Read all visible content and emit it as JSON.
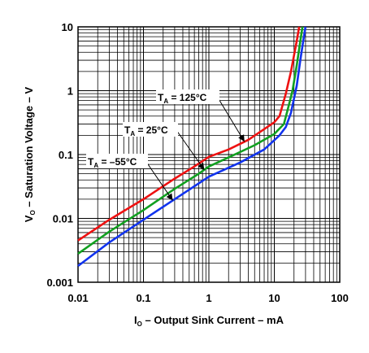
{
  "chart_data": {
    "type": "line",
    "title": "",
    "x_axis": {
      "label_main": "I",
      "label_sub": "O",
      "label_rest": " – Output Sink Current – mA",
      "scale": "log",
      "xlim": [
        0.01,
        100
      ],
      "ticks": [
        "0.01",
        "0.1",
        "1",
        "10",
        "100"
      ]
    },
    "y_axis": {
      "label_main": "V",
      "label_sub": "O",
      "label_rest": " – Saturation Voltage – V",
      "scale": "log",
      "ylim": [
        0.001,
        10
      ],
      "ticks": [
        "0.001",
        "0.01",
        "0.1",
        "1",
        "10"
      ]
    },
    "grid": true,
    "series": [
      {
        "name": "T_A = 125°C",
        "label_main": "T",
        "label_sub": "A",
        "label_rest": " = 125°C",
        "color": "#ee1111",
        "points": [
          [
            0.01,
            0.0045
          ],
          [
            0.03,
            0.0095
          ],
          [
            0.1,
            0.02
          ],
          [
            0.3,
            0.042
          ],
          [
            0.6,
            0.065
          ],
          [
            1,
            0.092
          ],
          [
            2,
            0.12
          ],
          [
            4,
            0.17
          ],
          [
            7,
            0.25
          ],
          [
            10,
            0.32
          ],
          [
            12,
            0.4
          ],
          [
            15,
            0.9
          ],
          [
            18,
            2.0
          ],
          [
            22,
            6.0
          ],
          [
            24,
            10
          ]
        ]
      },
      {
        "name": "T_A = 25°C",
        "label_main": "T",
        "label_sub": "A",
        "label_rest": " = 25°C",
        "color": "#11a020",
        "points": [
          [
            0.01,
            0.0028
          ],
          [
            0.03,
            0.0062
          ],
          [
            0.1,
            0.0135
          ],
          [
            0.3,
            0.029
          ],
          [
            0.7,
            0.05
          ],
          [
            1,
            0.065
          ],
          [
            2,
            0.09
          ],
          [
            5,
            0.14
          ],
          [
            10,
            0.21
          ],
          [
            14,
            0.3
          ],
          [
            16,
            0.5
          ],
          [
            19,
            1.0
          ],
          [
            22,
            2.5
          ],
          [
            25,
            6.0
          ],
          [
            27,
            10
          ]
        ]
      },
      {
        "name": "T_A = –55°C",
        "label_main": "T",
        "label_sub": "A",
        "label_rest": " = –55°C",
        "color": "#1133ee",
        "points": [
          [
            0.01,
            0.0018
          ],
          [
            0.03,
            0.0042
          ],
          [
            0.1,
            0.0095
          ],
          [
            0.3,
            0.02
          ],
          [
            1,
            0.045
          ],
          [
            3,
            0.075
          ],
          [
            7,
            0.12
          ],
          [
            12,
            0.2
          ],
          [
            15,
            0.27
          ],
          [
            18,
            0.45
          ],
          [
            22,
            1.2
          ],
          [
            25,
            3.0
          ],
          [
            28,
            6.5
          ],
          [
            30,
            10
          ]
        ]
      }
    ]
  }
}
